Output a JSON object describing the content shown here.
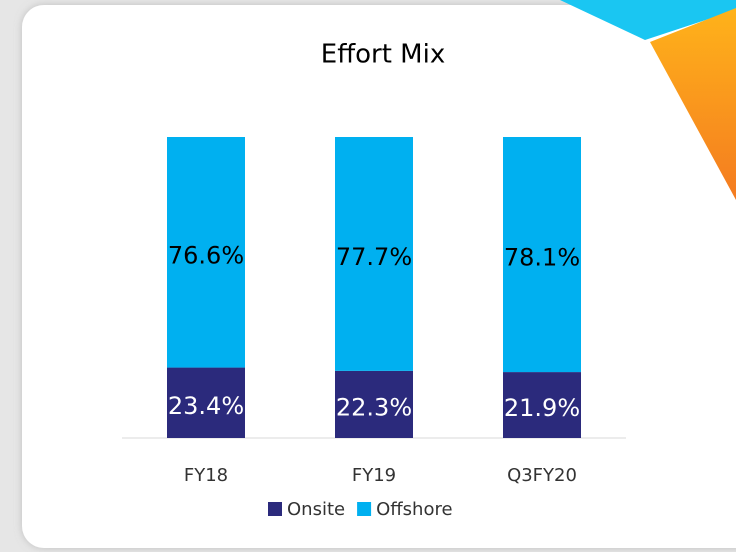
{
  "chart_data": {
    "type": "stacked_bar",
    "title": "Effort Mix",
    "categories": [
      "FY18",
      "FY19",
      "Q3FY20"
    ],
    "series": [
      {
        "name": "Onsite",
        "color": "#2b2a7c",
        "values": [
          23.4,
          22.3,
          21.9
        ],
        "value_labels": [
          "23.4%",
          "22.3%",
          "21.9%"
        ]
      },
      {
        "name": "Offshore",
        "color": "#00b0f0",
        "values": [
          76.6,
          77.7,
          78.1
        ],
        "value_labels": [
          "76.6%",
          "77.7%",
          "78.1%"
        ]
      }
    ],
    "ylim": [
      0,
      100
    ],
    "legend": "bottom"
  }
}
